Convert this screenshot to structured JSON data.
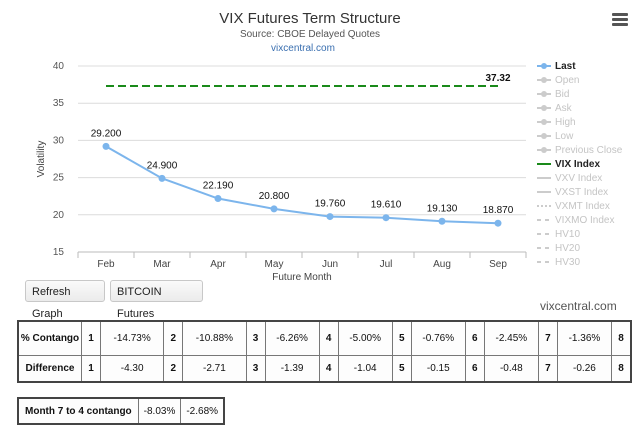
{
  "chart_data": {
    "type": "line",
    "title": "VIX Futures Term Structure",
    "subtitle": "Source: CBOE Delayed Quotes",
    "credit_top": "vixcentral.com",
    "xlabel": "Future Month",
    "ylabel": "Volatility",
    "categories": [
      "Feb",
      "Mar",
      "Apr",
      "May",
      "Jun",
      "Jul",
      "Aug",
      "Sep"
    ],
    "ylim": [
      15,
      40
    ],
    "yticks": [
      "15",
      "20",
      "25",
      "30",
      "35",
      "40"
    ],
    "grid": true,
    "legend_position": "right",
    "series": [
      {
        "name": "Last",
        "color": "#7cb5ec",
        "values": [
          29.2,
          24.9,
          22.19,
          20.8,
          19.76,
          19.61,
          19.13,
          18.87
        ],
        "labels": [
          "29.200",
          "24.900",
          "22.190",
          "20.800",
          "19.760",
          "19.610",
          "19.130",
          "18.870"
        ]
      },
      {
        "name": "VIX Index",
        "color": "#1a8a1a",
        "dashed": true,
        "constant": 37.32,
        "label": "37.32"
      }
    ],
    "legend": [
      {
        "name": "Last",
        "active": true,
        "style": "dot"
      },
      {
        "name": "Open",
        "active": false,
        "style": "dot"
      },
      {
        "name": "Bid",
        "active": false,
        "style": "dot"
      },
      {
        "name": "Ask",
        "active": false,
        "style": "dot"
      },
      {
        "name": "High",
        "active": false,
        "style": "dot"
      },
      {
        "name": "Low",
        "active": false,
        "style": "dot"
      },
      {
        "name": "Previous Close",
        "active": false,
        "style": "dot"
      },
      {
        "name": "VIX Index",
        "active": true,
        "style": "line"
      },
      {
        "name": "VXV Index",
        "active": false,
        "style": "line"
      },
      {
        "name": "VXST Index",
        "active": false,
        "style": "line"
      },
      {
        "name": "VXMT Index",
        "active": false,
        "style": "dotted"
      },
      {
        "name": "VIXMO Index",
        "active": false,
        "style": "dash"
      },
      {
        "name": "HV10",
        "active": false,
        "style": "dash"
      },
      {
        "name": "HV20",
        "active": false,
        "style": "dash"
      },
      {
        "name": "HV30",
        "active": false,
        "style": "dash"
      }
    ]
  },
  "buttons": {
    "refresh": "Refresh Graph",
    "bitcoin": "BITCOIN Futures"
  },
  "credit_bottom": "vixcentral.com",
  "stats": {
    "contango_label": "% Contango",
    "difference_label": "Difference",
    "contango": [
      {
        "idx": "1",
        "val": "-14.73%"
      },
      {
        "idx": "2",
        "val": "-10.88%"
      },
      {
        "idx": "3",
        "val": "-6.26%"
      },
      {
        "idx": "4",
        "val": "-5.00%"
      },
      {
        "idx": "5",
        "val": "-0.76%"
      },
      {
        "idx": "6",
        "val": "-2.45%"
      },
      {
        "idx": "7",
        "val": "-1.36%"
      },
      {
        "idx": "8",
        "val": ""
      }
    ],
    "difference": [
      {
        "idx": "1",
        "val": "-4.30"
      },
      {
        "idx": "2",
        "val": "-2.71"
      },
      {
        "idx": "3",
        "val": "-1.39"
      },
      {
        "idx": "4",
        "val": "-1.04"
      },
      {
        "idx": "5",
        "val": "-0.15"
      },
      {
        "idx": "6",
        "val": "-0.48"
      },
      {
        "idx": "7",
        "val": "-0.26"
      },
      {
        "idx": "8",
        "val": ""
      }
    ]
  },
  "month_contango": {
    "label": "Month 7 to 4 contango",
    "values": [
      "-8.03%",
      "-2.68%"
    ]
  }
}
